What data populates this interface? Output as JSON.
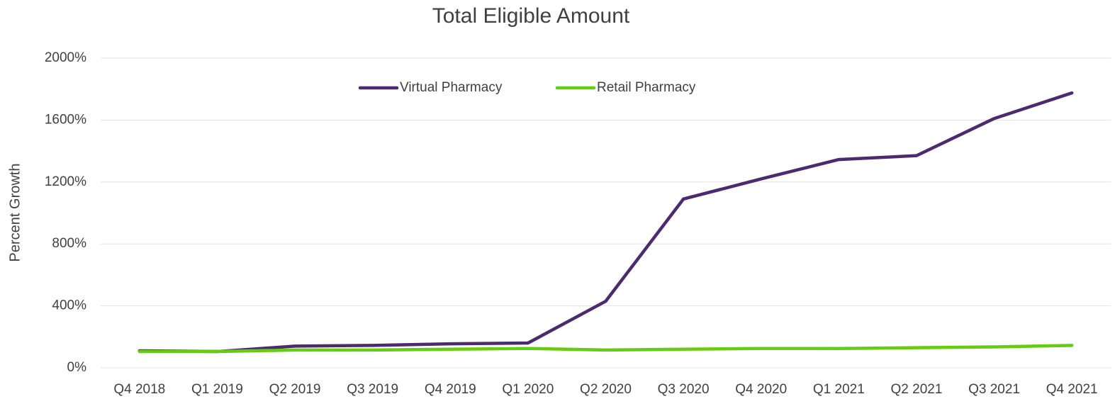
{
  "chart_data": {
    "type": "line",
    "title": "Total Eligible Amount",
    "y_label": "Percent Growth",
    "categories": [
      "Q4 2018",
      "Q1 2019",
      "Q2 2019",
      "Q3 2019",
      "Q4 2019",
      "Q1 2020",
      "Q2 2020",
      "Q3 2020",
      "Q4 2020",
      "Q1 2021",
      "Q2 2021",
      "Q3 2021",
      "Q4 2021"
    ],
    "series": [
      {
        "name": "Virtual Pharmacy",
        "color": "#4b2a6e",
        "values": [
          110,
          105,
          140,
          145,
          155,
          160,
          430,
          1090,
          1220,
          1345,
          1370,
          1610,
          1775
        ]
      },
      {
        "name": "Retail Pharmacy",
        "color": "#66cc11",
        "values": [
          105,
          105,
          115,
          115,
          120,
          125,
          115,
          120,
          125,
          125,
          130,
          135,
          145
        ]
      }
    ],
    "ylim": [
      0,
      2000
    ],
    "yticks": [
      {
        "value": 0,
        "label": "0%"
      },
      {
        "value": 400,
        "label": "400%"
      },
      {
        "value": 800,
        "label": "800%"
      },
      {
        "value": 1200,
        "label": "1200%"
      },
      {
        "value": 1600,
        "label": "1600%"
      },
      {
        "value": 2000,
        "label": "2000%"
      }
    ],
    "grid": true,
    "legend": "top"
  }
}
